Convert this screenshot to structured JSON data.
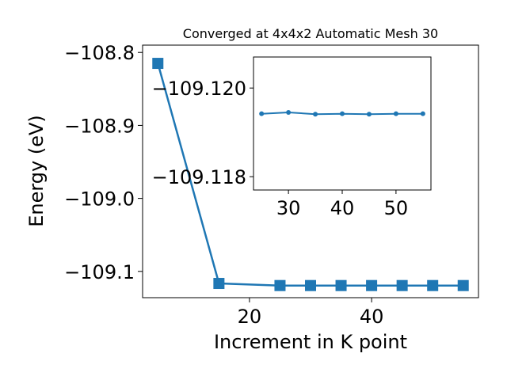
{
  "chart_data": [
    {
      "type": "line",
      "title": "Converged at 4x4x2 Automatic Mesh 30",
      "xlabel": "Increment in K point",
      "ylabel": "Energy (eV)",
      "xlim": [
        2.5,
        57.5
      ],
      "ylim": [
        -109.136,
        -108.79
      ],
      "xticks": [
        20,
        40
      ],
      "xtick_labels": [
        "20",
        "40"
      ],
      "yticks": [
        -108.8,
        -108.9,
        -109.0,
        -109.1
      ],
      "ytick_labels": [
        "−108.8",
        "−108.9",
        "−109.0",
        "−109.1"
      ],
      "marker": "square",
      "grid": false,
      "color": "#1f77b4",
      "series": [
        {
          "x": [
            5,
            15,
            25,
            30,
            35,
            40,
            45,
            50,
            55
          ],
          "y": [
            -108.815,
            -109.1165,
            -109.1194,
            -109.1194,
            -109.1194,
            -109.1194,
            -109.1194,
            -109.1194,
            -109.1194
          ]
        }
      ]
    },
    {
      "type": "line",
      "title": "",
      "xlabel": "",
      "ylabel": "",
      "xlim": [
        23.5,
        56.5
      ],
      "ylim": [
        -109.1177,
        -109.1207
      ],
      "xticks": [
        30,
        40,
        50
      ],
      "xtick_labels": [
        "30",
        "40",
        "50"
      ],
      "yticks": [
        -109.12,
        -109.118
      ],
      "ytick_labels": [
        "−109.120",
        "−109.118"
      ],
      "marker": "circle",
      "grid": false,
      "color": "#1f77b4",
      "series": [
        {
          "x": [
            25,
            30,
            35,
            40,
            45,
            50,
            55
          ],
          "y": [
            -109.11942,
            -109.11945,
            -109.11941,
            -109.11942,
            -109.11941,
            -109.11942,
            -109.11942
          ]
        }
      ]
    }
  ]
}
